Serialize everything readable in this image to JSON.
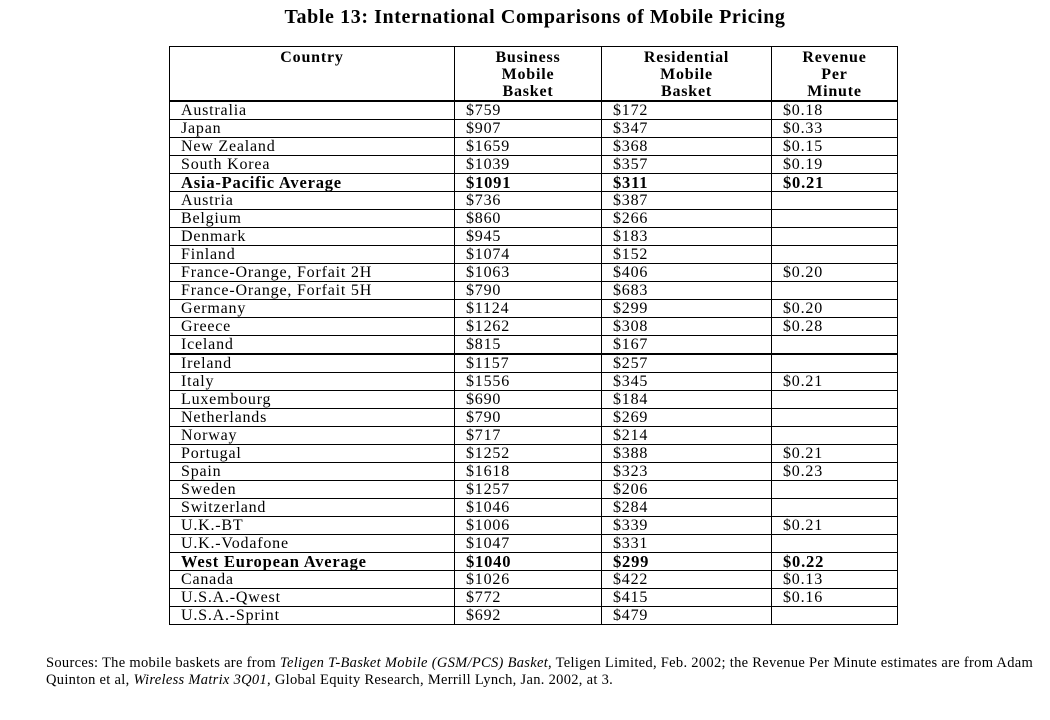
{
  "title": "Table 13: International Comparisons of Mobile Pricing",
  "columns": {
    "country": "Country",
    "business": [
      "Business",
      "Mobile",
      "Basket"
    ],
    "residential": [
      "Residential",
      "Mobile",
      "Basket"
    ],
    "revenue": [
      "Revenue",
      "Per",
      "Minute"
    ]
  },
  "rows": [
    {
      "country": "Australia",
      "business": "$759",
      "residential": "$172",
      "revenue": "$0.18"
    },
    {
      "country": "Japan",
      "business": "$907",
      "residential": "$347",
      "revenue": "$0.33"
    },
    {
      "country": "New Zealand",
      "business": "$1659",
      "residential": "$368",
      "revenue": "$0.15"
    },
    {
      "country": "South Korea",
      "business": "$1039",
      "residential": "$357",
      "revenue": "$0.19"
    },
    {
      "country": "Asia-Pacific Average",
      "business": "$1091",
      "residential": "$311",
      "revenue": "$0.21"
    },
    {
      "country": "Austria",
      "business": "$736",
      "residential": "$387",
      "revenue": ""
    },
    {
      "country": "Belgium",
      "business": "$860",
      "residential": "$266",
      "revenue": ""
    },
    {
      "country": "Denmark",
      "business": "$945",
      "residential": "$183",
      "revenue": ""
    },
    {
      "country": "Finland",
      "business": "$1074",
      "residential": "$152",
      "revenue": ""
    },
    {
      "country": "France-Orange, Forfait 2H",
      "business": "$1063",
      "residential": "$406",
      "revenue": "$0.20"
    },
    {
      "country": "France-Orange, Forfait 5H",
      "business": "$790",
      "residential": "$683",
      "revenue": ""
    },
    {
      "country": "Germany",
      "business": "$1124",
      "residential": "$299",
      "revenue": "$0.20"
    },
    {
      "country": "Greece",
      "business": "$1262",
      "residential": "$308",
      "revenue": "$0.28"
    },
    {
      "country": "Iceland",
      "business": "$815",
      "residential": "$167",
      "revenue": ""
    },
    {
      "country": "Ireland",
      "business": "$1157",
      "residential": "$257",
      "revenue": ""
    },
    {
      "country": "Italy",
      "business": "$1556",
      "residential": "$345",
      "revenue": "$0.21"
    },
    {
      "country": "Luxembourg",
      "business": "$690",
      "residential": "$184",
      "revenue": ""
    },
    {
      "country": "Netherlands",
      "business": "$790",
      "residential": "$269",
      "revenue": ""
    },
    {
      "country": "Norway",
      "business": "$717",
      "residential": "$214",
      "revenue": ""
    },
    {
      "country": "Portugal",
      "business": "$1252",
      "residential": "$388",
      "revenue": "$0.21"
    },
    {
      "country": "Spain",
      "business": "$1618",
      "residential": "$323",
      "revenue": "$0.23"
    },
    {
      "country": "Sweden",
      "business": "$1257",
      "residential": "$206",
      "revenue": ""
    },
    {
      "country": "Switzerland",
      "business": "$1046",
      "residential": "$284",
      "revenue": ""
    },
    {
      "country": "U.K.-BT",
      "business": "$1006",
      "residential": "$339",
      "revenue": "$0.21"
    },
    {
      "country": "U.K.-Vodafone",
      "business": "$1047",
      "residential": "$331",
      "revenue": ""
    },
    {
      "country": "West European Average",
      "business": "$1040",
      "residential": "$299",
      "revenue": "$0.22"
    },
    {
      "country": "Canada",
      "business": "$1026",
      "residential": "$422",
      "revenue": "$0.13"
    },
    {
      "country": "U.S.A.-Qwest",
      "business": "$772",
      "residential": "$415",
      "revenue": "$0.16"
    },
    {
      "country": "U.S.A.-Sprint",
      "business": "$692",
      "residential": "$479",
      "revenue": ""
    }
  ],
  "sources": {
    "p1": "Sources: The mobile baskets are from ",
    "i1": "Teligen T-Basket    Mobile (GSM/PCS) Basket",
    "p2": ", Teligen Limited, Feb. 2002; the Revenue Per Minute estimates are from Adam Quinton et al, ",
    "i2": "Wireless Matrix    3Q01",
    "p3": ", Global Equity Research, Merrill Lynch, Jan. 2002, at 3."
  }
}
